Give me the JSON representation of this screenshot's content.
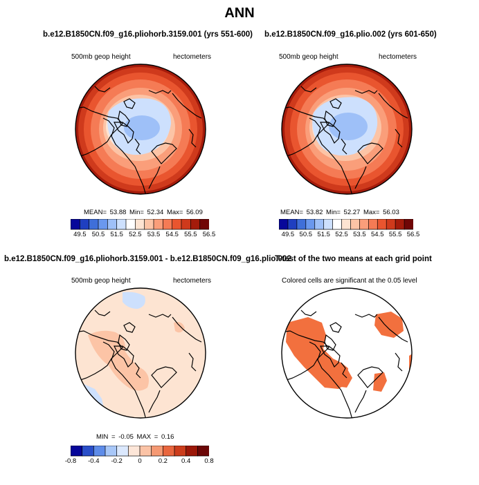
{
  "title": "ANN",
  "panels": {
    "top_left": {
      "title": "b.e12.B1850CN.f09_g16.pliohorb.3159.001 (yrs 551-600)",
      "left_label": "500mb geop height",
      "right_label": "hectometers",
      "stats": "MEAN=   53.88   Min=   52.34   Max=   56.09"
    },
    "top_right": {
      "title": "b.e12.B1850CN.f09_g16.plio.002 (yrs 601-650)",
      "left_label": "500mb geop height",
      "right_label": "hectometers",
      "stats": "MEAN=   53.82   Min=   52.27   Max=   56.03"
    },
    "bottom_left": {
      "title": "b.e12.B1850CN.f09_g16.pliohorb.3159.001 - b.e12.B1850CN.f09_g16.plio.002",
      "left_label": "500mb geop height",
      "right_label": "hectometers",
      "stats": "MIN =   -0.05  MAX =    0.16"
    },
    "bottom_right": {
      "title": "T-test of the two means at each grid point",
      "left_label": "Colored cells are significant at the 0.05 level"
    }
  },
  "colorbars": {
    "abs": {
      "ticks": [
        "49.5",
        "50.5",
        "51.5",
        "52.5",
        "53.5",
        "54.5",
        "55.5",
        "56.5"
      ],
      "colors": [
        "#07079a",
        "#1f3fc0",
        "#3f6fd9",
        "#6a98ee",
        "#9ec0f8",
        "#cde0fd",
        "#ffffff",
        "#fde4d2",
        "#fcc4a6",
        "#fa9e7a",
        "#f57b55",
        "#e9552f",
        "#cf3a1c",
        "#a41b0b",
        "#700606"
      ]
    },
    "diff": {
      "ticks": [
        "-0.8",
        "-0.4",
        "-0.2",
        "0",
        "0.2",
        "0.4",
        "0.8"
      ],
      "colors": [
        "#07079a",
        "#2a4fc9",
        "#5e8ce9",
        "#a8c7f8",
        "#dbe8fd",
        "#fde6d8",
        "#fbc3a6",
        "#f59973",
        "#e9663e",
        "#cc3d1c",
        "#9c1808",
        "#6b0606"
      ]
    }
  },
  "colors": {
    "significant": "#f2703e"
  }
}
